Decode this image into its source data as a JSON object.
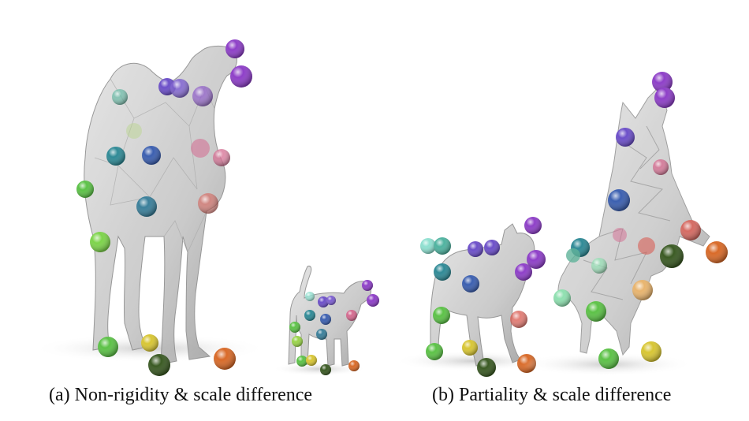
{
  "figure": {
    "panels": [
      {
        "caption": "(a) Non-rigidity & scale difference",
        "shapes": [
          "camel-mesh",
          "dog-mesh"
        ]
      },
      {
        "caption": "(b) Partiality & scale difference",
        "shapes": [
          "cat-mesh",
          "wolf-mesh"
        ]
      }
    ],
    "colors": {
      "mesh": "#c9c9c9",
      "mesh_shadow": "#9a9a9a",
      "ground_shadow": "#e2e2e2",
      "keypoint_purple": "#8e3fc8",
      "keypoint_violet": "#6c4fc9",
      "keypoint_blue": "#3b5fb0",
      "keypoint_teal": "#2f8a96",
      "keypoint_pink": "#d46a8f",
      "keypoint_red": "#d8544a",
      "keypoint_green": "#5cc247",
      "keypoint_lime": "#9ad44a",
      "keypoint_yellow": "#d8c634",
      "keypoint_dark_green": "#3a5a23",
      "keypoint_orange": "#d96a28",
      "keypoint_mint": "#8fe0b0",
      "keypoint_peach": "#e8b46e"
    }
  }
}
